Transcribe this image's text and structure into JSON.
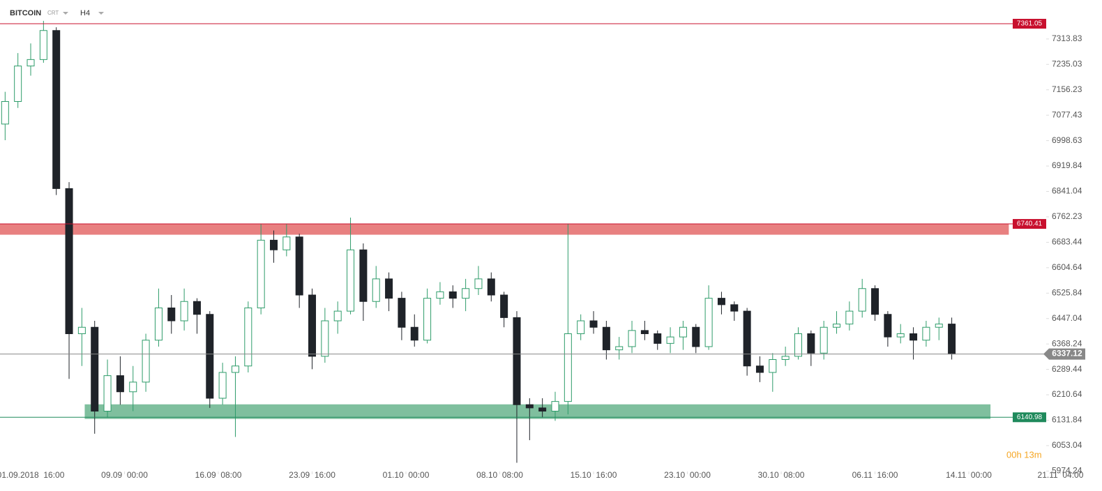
{
  "header": {
    "symbol": "BITCOIN",
    "mode": "CRT",
    "interval": "H4"
  },
  "timer": "00h 13m",
  "chart_data": {
    "type": "candlestick",
    "x": [
      -12,
      -6,
      0,
      6,
      12,
      18,
      24,
      30,
      36,
      42,
      48,
      54,
      60,
      66,
      72,
      78,
      84,
      90,
      96,
      102,
      108,
      114,
      120,
      126,
      132,
      138,
      144,
      150,
      156,
      162,
      168,
      174,
      180,
      186,
      192,
      198,
      204,
      210,
      216,
      222,
      228,
      234,
      240,
      246,
      252,
      258,
      264,
      270,
      276,
      282,
      288,
      294,
      300,
      306,
      312,
      318,
      324,
      330,
      336,
      342,
      348,
      354,
      360,
      366,
      372,
      378,
      384,
      390,
      396,
      402,
      408,
      414,
      420,
      426,
      432
    ],
    "open": [
      7050,
      7120,
      7230,
      7250,
      7340,
      6850,
      6400,
      6420,
      6160,
      6270,
      6220,
      6250,
      6380,
      6480,
      6440,
      6500,
      6460,
      6200,
      6280,
      6300,
      6480,
      6690,
      6660,
      6700,
      6520,
      6330,
      6440,
      6470,
      6660,
      6500,
      6570,
      6510,
      6420,
      6380,
      6510,
      6530,
      6510,
      6540,
      6570,
      6520,
      6450,
      6180,
      6170,
      6160,
      6190,
      6400,
      6440,
      6420,
      6350,
      6360,
      6410,
      6400,
      6370,
      6390,
      6420,
      6360,
      6510,
      6490,
      6470,
      6300,
      6280,
      6320,
      6330,
      6400,
      6340,
      6420,
      6430,
      6470,
      6540,
      6460,
      6390,
      6400,
      6380,
      6420,
      6430
    ],
    "high": [
      7150,
      7270,
      7300,
      7370,
      7350,
      6870,
      6480,
      6440,
      6320,
      6330,
      6300,
      6400,
      6540,
      6520,
      6540,
      6510,
      6470,
      6310,
      6330,
      6500,
      6740,
      6720,
      6740,
      6710,
      6540,
      6480,
      6500,
      6760,
      6680,
      6610,
      6590,
      6530,
      6460,
      6540,
      6560,
      6550,
      6570,
      6610,
      6590,
      6530,
      6470,
      6200,
      6200,
      6220,
      6740,
      6460,
      6470,
      6440,
      6390,
      6440,
      6440,
      6410,
      6420,
      6440,
      6430,
      6550,
      6530,
      6500,
      6480,
      6330,
      6340,
      6360,
      6420,
      6410,
      6440,
      6470,
      6500,
      6570,
      6550,
      6470,
      6430,
      6420,
      6440,
      6450,
      6450
    ],
    "low": [
      7000,
      7100,
      7200,
      7240,
      6830,
      6260,
      6300,
      6090,
      6140,
      6180,
      6160,
      6220,
      6360,
      6400,
      6410,
      6400,
      6170,
      6180,
      6080,
      6280,
      6460,
      6620,
      6640,
      6480,
      6290,
      6310,
      6400,
      6460,
      6440,
      6480,
      6470,
      6380,
      6360,
      6370,
      6490,
      6480,
      6470,
      6520,
      6500,
      6420,
      6000,
      6070,
      6140,
      6130,
      6150,
      6380,
      6400,
      6320,
      6320,
      6340,
      6380,
      6350,
      6340,
      6350,
      6340,
      6350,
      6460,
      6440,
      6270,
      6250,
      6220,
      6300,
      6320,
      6300,
      6320,
      6400,
      6410,
      6450,
      6440,
      6360,
      6370,
      6320,
      6360,
      6380,
      6320
    ],
    "close": [
      7120,
      7230,
      7250,
      7340,
      6850,
      6400,
      6420,
      6160,
      6270,
      6220,
      6250,
      6380,
      6480,
      6440,
      6500,
      6460,
      6200,
      6280,
      6300,
      6480,
      6690,
      6660,
      6700,
      6520,
      6330,
      6440,
      6470,
      6660,
      6500,
      6570,
      6510,
      6420,
      6380,
      6510,
      6530,
      6510,
      6540,
      6570,
      6520,
      6450,
      6180,
      6170,
      6160,
      6190,
      6400,
      6440,
      6420,
      6350,
      6360,
      6410,
      6400,
      6370,
      6390,
      6420,
      6360,
      6510,
      6490,
      6470,
      6300,
      6280,
      6320,
      6330,
      6400,
      6340,
      6420,
      6430,
      6470,
      6540,
      6460,
      6390,
      6400,
      6380,
      6420,
      6430,
      6337.12
    ],
    "colors": {
      "up": "#2e9c6a",
      "down": "#1f2329"
    },
    "xlim": [
      -14.4,
      476.3
    ],
    "ylim": [
      5964.3,
      7434.6
    ],
    "xticks": [
      {
        "value": 0,
        "label": "01.09.2018  16:00"
      },
      {
        "value": 44,
        "label": "09.09  00:00"
      },
      {
        "value": 88,
        "label": "16.09  08:00"
      },
      {
        "value": 132,
        "label": "23.09  16:00"
      },
      {
        "value": 176,
        "label": "01.10  00:00"
      },
      {
        "value": 220,
        "label": "08.10  08:00"
      },
      {
        "value": 264,
        "label": "15.10  16:00"
      },
      {
        "value": 308,
        "label": "23.10  00:00"
      },
      {
        "value": 352,
        "label": "30.10  08:00"
      },
      {
        "value": 396,
        "label": "06.11  16:00"
      },
      {
        "value": 440,
        "label": "14.11  00:00"
      },
      {
        "value": 483,
        "label": "21.11  04:00"
      }
    ],
    "yticks": [
      7313.83,
      7235.03,
      7156.23,
      7077.43,
      6998.63,
      6919.84,
      6841.04,
      6762.23,
      6683.44,
      6604.64,
      6525.84,
      6447.04,
      6368.24,
      6289.44,
      6210.64,
      6131.84,
      6053.04,
      5974.24
    ],
    "zones": [
      {
        "low": 6708,
        "high": 6740.41,
        "x_from": -14.4,
        "x_to": 458.6,
        "color": "#e88080"
      },
      {
        "low": 6137,
        "high": 6180,
        "x_from": 25.5,
        "x_to": 450,
        "color": "#7fbf9e"
      }
    ],
    "levels": [
      {
        "value": 7361.05,
        "color": "#c8102e"
      },
      {
        "value": 6740.41,
        "color": "#c8102e"
      },
      {
        "value": 6140.98,
        "color": "#1f8a5c"
      }
    ],
    "current_price": 6337.12,
    "current_color": "#888888"
  }
}
